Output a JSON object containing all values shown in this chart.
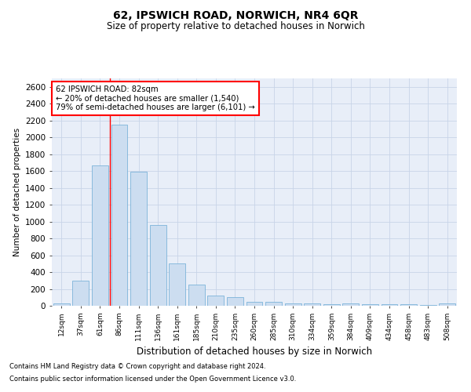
{
  "title": "62, IPSWICH ROAD, NORWICH, NR4 6QR",
  "subtitle": "Size of property relative to detached houses in Norwich",
  "xlabel": "Distribution of detached houses by size in Norwich",
  "ylabel": "Number of detached properties",
  "footnote1": "Contains HM Land Registry data © Crown copyright and database right 2024.",
  "footnote2": "Contains public sector information licensed under the Open Government Licence v3.0.",
  "annotation_line1": "62 IPSWICH ROAD: 82sqm",
  "annotation_line2": "← 20% of detached houses are smaller (1,540)",
  "annotation_line3": "79% of semi-detached houses are larger (6,101) →",
  "bar_color": "#ccddf0",
  "bar_edge_color": "#6aaad4",
  "redline_idx": 3,
  "categories": [
    "12sqm",
    "37sqm",
    "61sqm",
    "86sqm",
    "111sqm",
    "136sqm",
    "161sqm",
    "185sqm",
    "210sqm",
    "235sqm",
    "260sqm",
    "285sqm",
    "310sqm",
    "334sqm",
    "359sqm",
    "384sqm",
    "409sqm",
    "434sqm",
    "458sqm",
    "483sqm",
    "508sqm"
  ],
  "values": [
    25,
    300,
    1670,
    2150,
    1595,
    960,
    505,
    248,
    125,
    100,
    50,
    50,
    30,
    30,
    20,
    28,
    20,
    20,
    20,
    5,
    25
  ],
  "ylim": [
    0,
    2700
  ],
  "yticks": [
    0,
    200,
    400,
    600,
    800,
    1000,
    1200,
    1400,
    1600,
    1800,
    2000,
    2200,
    2400,
    2600
  ],
  "grid_color": "#c8d4e8",
  "background_color": "#e8eef8"
}
